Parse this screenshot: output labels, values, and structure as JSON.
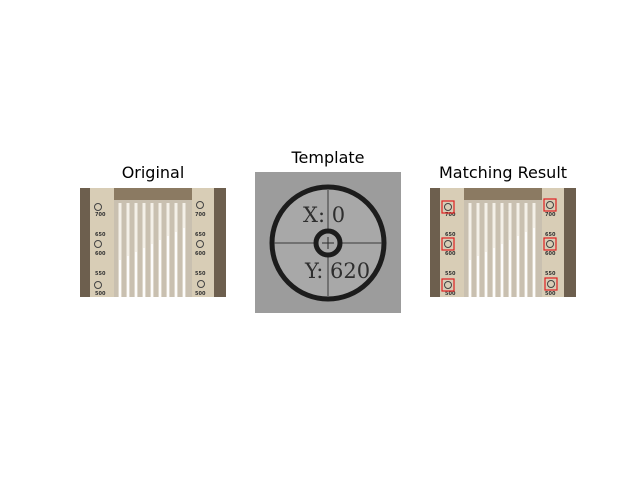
{
  "panels": {
    "original": {
      "title": "Original",
      "scale_labels": [
        "700",
        "650",
        "600",
        "550",
        "500"
      ]
    },
    "template": {
      "title": "Template",
      "x_text": "X: 0",
      "y_text": "Y: 620"
    },
    "result": {
      "title": "Matching Result",
      "scale_labels": [
        "700",
        "650",
        "600",
        "550",
        "500"
      ]
    }
  },
  "colors": {
    "match_box": "#e02020",
    "panel_background": "#6d5f4e",
    "scale_strip": "#d8cdb6",
    "template_background": "#9c9c9c",
    "ring": "#1c1c1c"
  }
}
